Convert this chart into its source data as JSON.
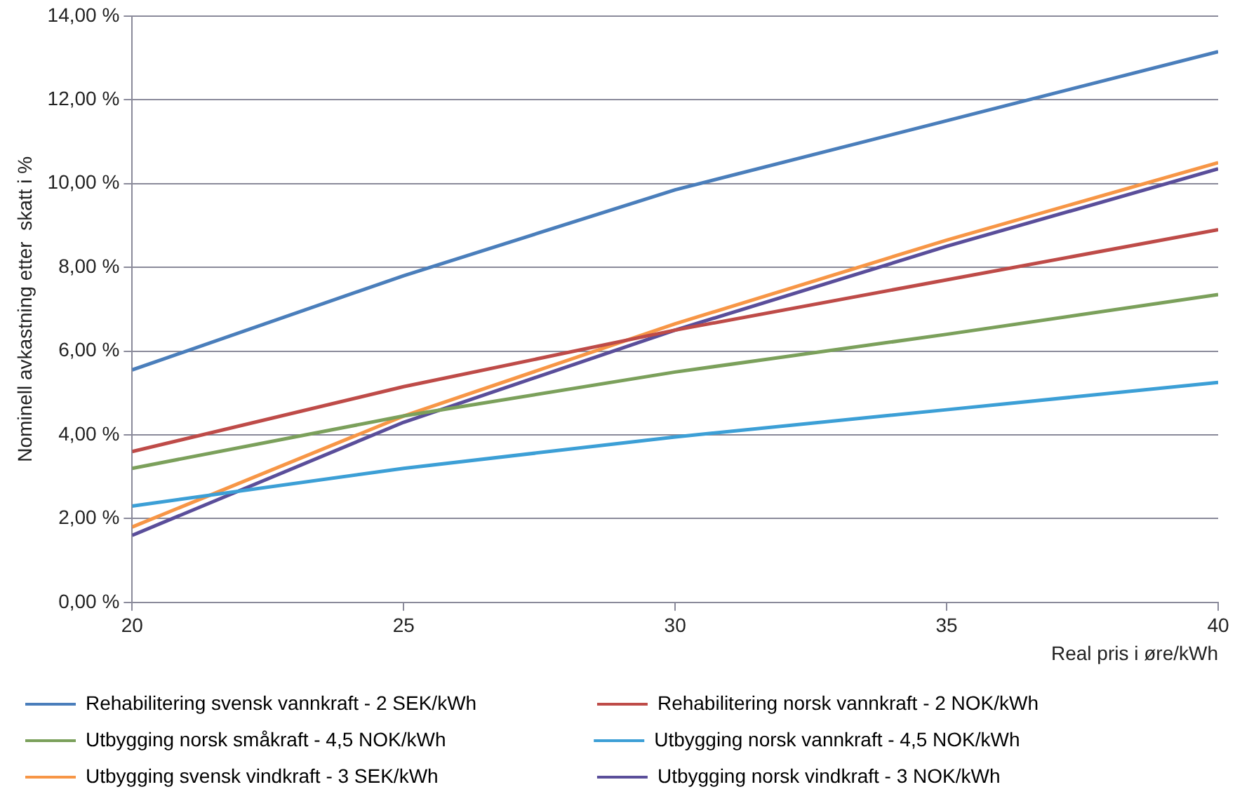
{
  "chart_data": {
    "type": "line",
    "xlabel": "Real pris i øre/kWh",
    "ylabel": "Nominell avkastning etter  skatt i %",
    "x": [
      20,
      25,
      30,
      35,
      40
    ],
    "series": [
      {
        "name": "Rehabilitering svensk vannkraft - 2 SEK/kWh",
        "color": "#4a7ebb",
        "values": [
          5.55,
          7.8,
          9.85,
          11.5,
          13.15
        ]
      },
      {
        "name": "Rehabilitering norsk vannkraft - 2 NOK/kWh",
        "color": "#be4b48",
        "values": [
          3.6,
          5.15,
          6.5,
          7.7,
          8.9
        ]
      },
      {
        "name": "Utbygging norsk småkraft - 4,5 NOK/kWh",
        "color": "#7ba05b",
        "values": [
          3.2,
          4.45,
          5.5,
          6.4,
          7.35
        ]
      },
      {
        "name": "Utbygging norsk vannkraft - 4,5 NOK/kWh",
        "color": "#3c9fd6",
        "values": [
          2.3,
          3.2,
          3.95,
          4.6,
          5.25
        ]
      },
      {
        "name": "Utbygging svensk vindkraft - 3 SEK/kWh",
        "color": "#f79646",
        "values": [
          1.8,
          4.45,
          6.65,
          8.65,
          10.5
        ]
      },
      {
        "name": "Utbygging norsk vindkraft - 3 NOK/kWh",
        "color": "#5a4e9a",
        "values": [
          1.6,
          4.3,
          6.5,
          8.5,
          10.35
        ]
      }
    ],
    "xlim": [
      20,
      40
    ],
    "xticks": [
      20,
      25,
      30,
      35,
      40
    ],
    "ylim": [
      0,
      14
    ],
    "yticks": [
      {
        "value": 0,
        "label": "0,00 %"
      },
      {
        "value": 2,
        "label": "2,00 %"
      },
      {
        "value": 4,
        "label": "4,00 %"
      },
      {
        "value": 6,
        "label": "6,00 %"
      },
      {
        "value": 8,
        "label": "8,00 %"
      },
      {
        "value": 10,
        "label": "10,00 %"
      },
      {
        "value": 12,
        "label": "12,00 %"
      },
      {
        "value": 14,
        "label": "14,00 %"
      }
    ],
    "grid": "y",
    "legend": "bottom",
    "marker": "none",
    "line_style": "solid"
  }
}
